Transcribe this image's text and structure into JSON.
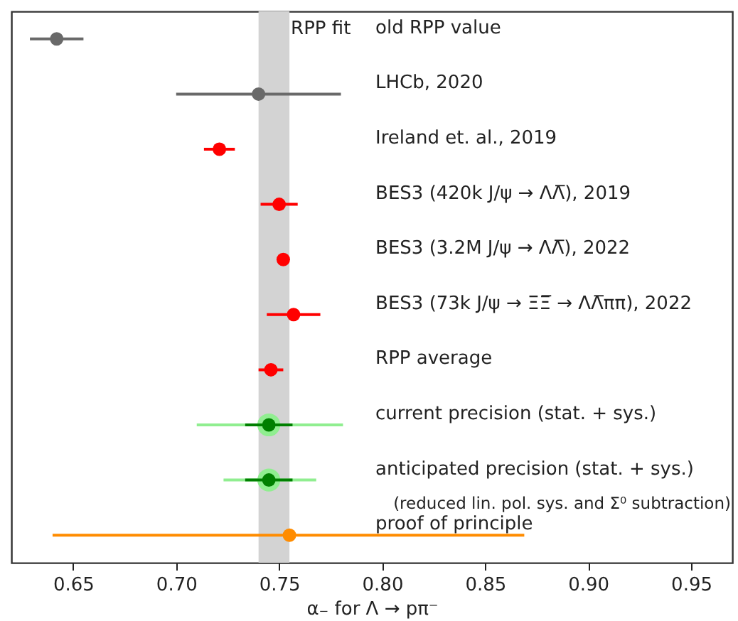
{
  "chart_data": {
    "type": "scatter",
    "orientation": "horizontal",
    "xlabel": "α₋ for Λ → pπ⁻",
    "xlim": [
      0.62,
      0.97
    ],
    "xticks": [
      {
        "value": 0.65,
        "label": "0.65"
      },
      {
        "value": 0.7,
        "label": "0.70"
      },
      {
        "value": 0.75,
        "label": "0.75"
      },
      {
        "value": 0.8,
        "label": "0.80"
      },
      {
        "value": 0.85,
        "label": "0.85"
      },
      {
        "value": 0.9,
        "label": "0.90"
      },
      {
        "value": 0.95,
        "label": "0.95"
      }
    ],
    "categories": [
      "old RPP value",
      "LHCb, 2020",
      "Ireland et. al., 2019",
      "BES3 (420k  J/ψ → ΛΛ̅), 2019",
      "BES3 (3.2M  J/ψ → ΛΛ̅), 2022",
      "BES3 (73k  J/ψ → ΞΞ̅ → ΛΛ̅ππ), 2022",
      "RPP average",
      "current precision (stat. + sys.)",
      "anticipated precision (stat. + sys.)",
      "proof of principle"
    ],
    "grid": false,
    "marker": "circle",
    "bands": [
      {
        "axis": "x",
        "from": 0.74,
        "to": 0.755,
        "label": "RPP fit",
        "color": "#d3d3d3"
      }
    ],
    "series": [
      {
        "color": "#696969",
        "values": [
          0.642,
          0.74,
          null,
          null,
          null,
          null,
          null,
          null,
          null,
          null
        ],
        "errors": [
          0.013,
          0.04,
          null,
          null,
          null,
          null,
          null,
          null,
          null,
          null
        ]
      },
      {
        "color": "#ff0000",
        "values": [
          null,
          null,
          0.721,
          0.75,
          0.752,
          0.757,
          0.746,
          null,
          null,
          null
        ],
        "errors": [
          null,
          null,
          0.0075,
          0.009,
          0.0027,
          0.013,
          0.006,
          null,
          null,
          null
        ]
      },
      {
        "color": "#90ee90",
        "values": [
          null,
          null,
          null,
          null,
          null,
          null,
          null,
          0.745,
          0.745,
          null
        ],
        "errors": [
          null,
          null,
          null,
          null,
          null,
          null,
          null,
          [
            0.71,
            0.781
          ],
          [
            0.723,
            0.768
          ],
          null
        ]
      },
      {
        "color": "#008000",
        "values": [
          null,
          null,
          null,
          null,
          null,
          null,
          null,
          0.745,
          0.745,
          null
        ],
        "errors": [
          null,
          null,
          null,
          null,
          null,
          null,
          null,
          0.0115,
          0.0115,
          null
        ]
      },
      {
        "color": "#ff8c00",
        "values": [
          null,
          null,
          null,
          null,
          null,
          null,
          null,
          null,
          null,
          0.755
        ],
        "errors": [
          null,
          null,
          null,
          null,
          null,
          null,
          null,
          null,
          null,
          [
            0.64,
            0.869
          ]
        ]
      }
    ],
    "annotations": [
      "(reduced lin. pol. sys. and Σ⁰ subtraction)"
    ]
  }
}
